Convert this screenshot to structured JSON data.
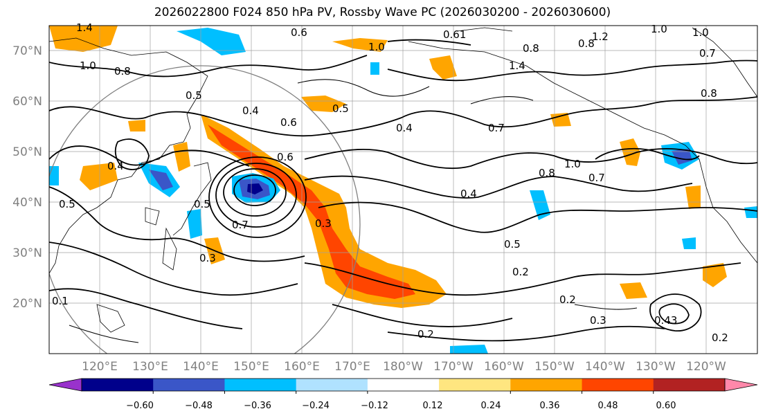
{
  "title": "2026022800 F024 850 hPa PV, Rossby Wave PC (2026030200 - 2026030600)",
  "lat_labels": [
    "70°N",
    "60°N",
    "50°N",
    "40°N",
    "30°N",
    "20°N"
  ],
  "lon_labels": [
    "120°E",
    "130°E",
    "140°E",
    "150°E",
    "160°E",
    "170°E",
    "180°W",
    "170°W",
    "160°W",
    "150°W",
    "140°W",
    "130°W",
    "120°W"
  ],
  "colorbar": {
    "tick_labels": [
      "−0.60",
      "−0.48",
      "−0.36",
      "−0.24",
      "−0.12",
      "0.12",
      "0.24",
      "0.36",
      "0.48",
      "0.60"
    ],
    "colors": [
      "#9932cc",
      "#00008b",
      "#3a56c8",
      "#00bfff",
      "#b0e2ff",
      "#ffffff",
      "#ffe680",
      "#ffa500",
      "#ff4500",
      "#b22222",
      "#ff88aa"
    ]
  },
  "contour_labels": [
    "1.4",
    "0.6",
    "0.61",
    "1.2",
    "1.0",
    "1.0",
    "0.8",
    "0.8",
    "0.7",
    "1.0",
    "0.8",
    "1.4",
    "0.8",
    "1.0",
    "0.5",
    "0.4",
    "0.6",
    "0.5",
    "0.4",
    "0.7",
    "0.6",
    "0.4",
    "0.8",
    "1.0",
    "0.7",
    "0.5",
    "0.4",
    "0.5",
    "0.7",
    "0.3",
    "0.5",
    "0.3",
    "0.2",
    "0.2",
    "0.2",
    "0.3",
    "0.43",
    "0.2",
    "0.1"
  ]
}
